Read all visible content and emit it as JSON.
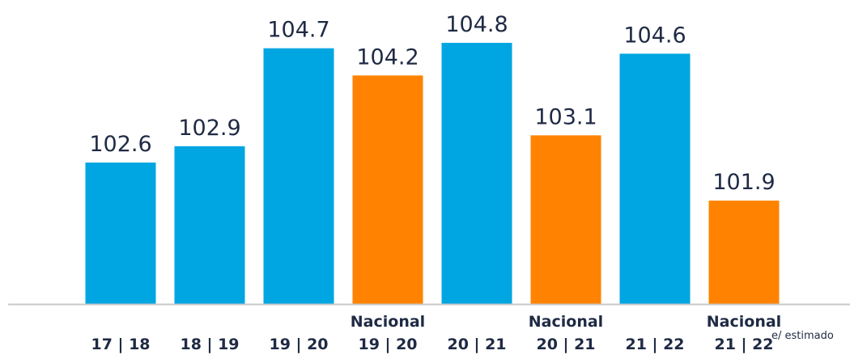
{
  "chart_data": {
    "type": "bar",
    "categories": [
      "17 | 18",
      "18 | 19",
      "19 | 20",
      "Nacional\n19 | 20",
      "20 | 21",
      "Nacional\n20 | 21",
      "21 | 22",
      "Nacional\n21 | 22"
    ],
    "values": [
      102.6,
      102.9,
      104.7,
      104.2,
      104.8,
      103.1,
      104.6,
      101.9
    ],
    "colors": [
      "#00a6e1",
      "#00a6e1",
      "#00a6e1",
      "#ff8300",
      "#00a6e1",
      "#ff8300",
      "#00a6e1",
      "#ff8300"
    ],
    "ylim": [
      100,
      105
    ],
    "annotation": "e/ estimado"
  }
}
